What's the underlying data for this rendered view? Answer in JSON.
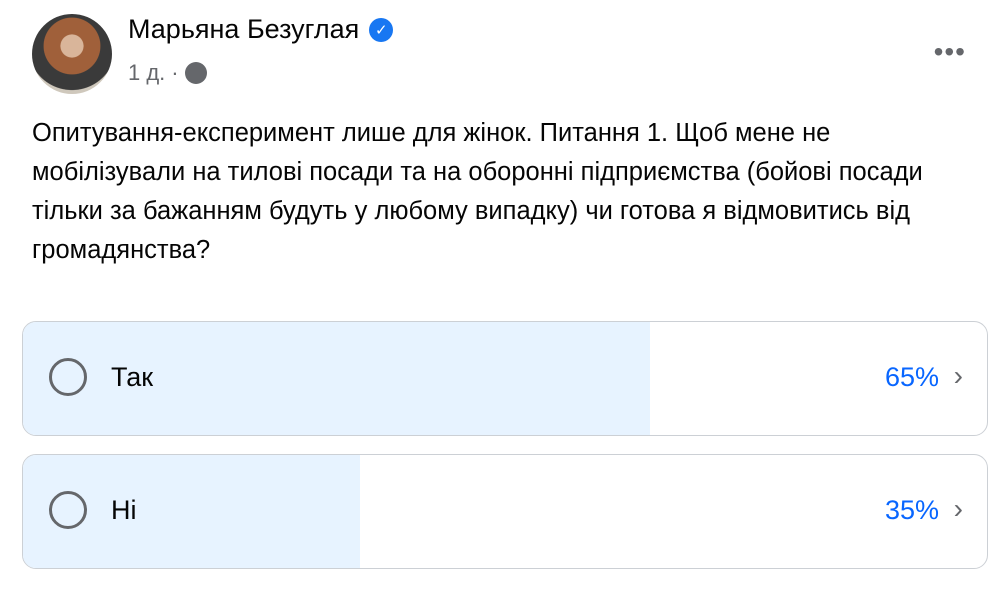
{
  "post": {
    "author": "Марьяна Безуглая",
    "verified": true,
    "time": "1 д.",
    "separator": "·",
    "privacy_icon": "globe-icon",
    "more_icon": "•••",
    "text": "Опитування-експеримент лише для жінок. Питання 1. Щоб мене не мобілізували на тилові посади та на оборонні підприємства (бойові посади тільки за бажанням будуть у любому випадку) чи готова я відмовитись від громадянства?"
  },
  "poll": {
    "fill_color": "#e7f3ff",
    "percent_color": "#0866ff",
    "options": [
      {
        "label": "Так",
        "percent_label": "65%",
        "percent": 65
      },
      {
        "label": "Ні",
        "percent_label": "35%",
        "percent": 35
      }
    ]
  }
}
